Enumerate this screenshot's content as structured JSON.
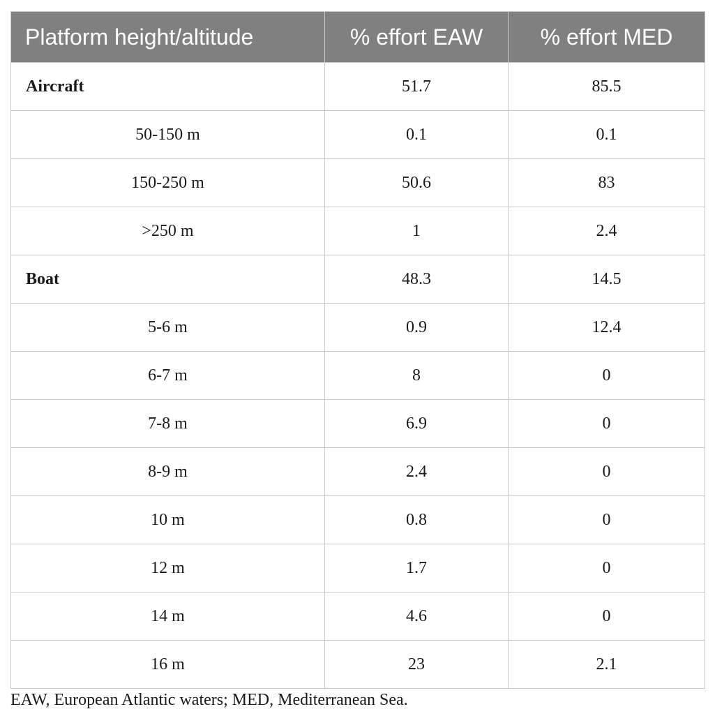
{
  "table": {
    "headers": [
      "Platform height/altitude",
      "% effort EAW",
      "% effort MED"
    ],
    "rows": [
      {
        "label": "Aircraft",
        "eaw": "51.7",
        "med": "85.5",
        "group": true
      },
      {
        "label": "50-150 m",
        "eaw": "0.1",
        "med": "0.1",
        "group": false
      },
      {
        "label": "150-250 m",
        "eaw": "50.6",
        "med": "83",
        "group": false
      },
      {
        "label": ">250 m",
        "eaw": "1",
        "med": "2.4",
        "group": false
      },
      {
        "label": "Boat",
        "eaw": "48.3",
        "med": "14.5",
        "group": true
      },
      {
        "label": "5-6 m",
        "eaw": "0.9",
        "med": "12.4",
        "group": false
      },
      {
        "label": "6-7 m",
        "eaw": "8",
        "med": "0",
        "group": false
      },
      {
        "label": "7-8 m",
        "eaw": "6.9",
        "med": "0",
        "group": false
      },
      {
        "label": "8-9 m",
        "eaw": "2.4",
        "med": "0",
        "group": false
      },
      {
        "label": "10 m",
        "eaw": "0.8",
        "med": "0",
        "group": false
      },
      {
        "label": "12 m",
        "eaw": "1.7",
        "med": "0",
        "group": false
      },
      {
        "label": "14 m",
        "eaw": "4.6",
        "med": "0",
        "group": false
      },
      {
        "label": "16 m",
        "eaw": "23",
        "med": "2.1",
        "group": false
      }
    ]
  },
  "footnote": "EAW, European Atlantic waters; MED, Mediterranean Sea.",
  "colors": {
    "header_bg": "#7f807f",
    "header_text": "#ffffff",
    "border": "#c8c8c8"
  }
}
